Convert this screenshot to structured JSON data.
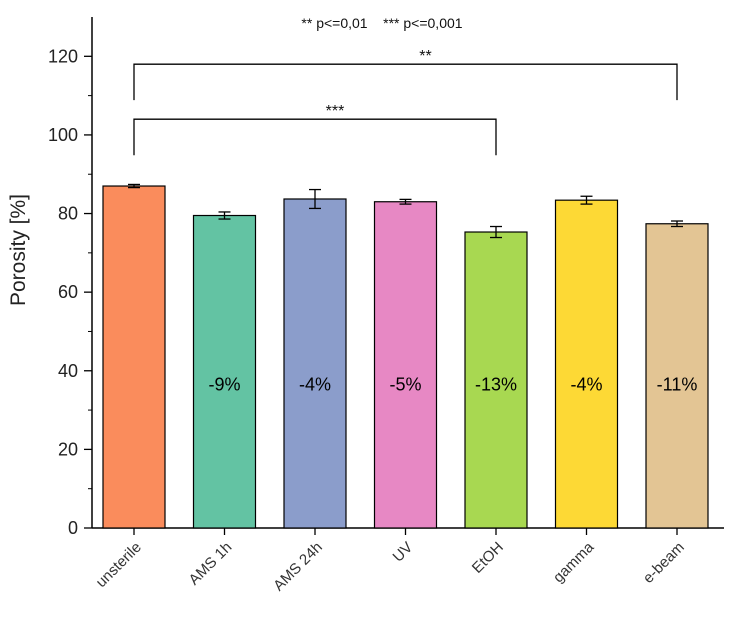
{
  "chart_data": {
    "type": "bar",
    "categories": [
      "unsterile",
      "AMS 1h",
      "AMS 24h",
      "UV",
      "EtOH",
      "gamma",
      "e-beam"
    ],
    "values": [
      87.0,
      79.5,
      83.7,
      83.0,
      75.3,
      83.4,
      77.4
    ],
    "errors": [
      0.4,
      0.9,
      2.4,
      0.6,
      1.4,
      1.0,
      0.7
    ],
    "colors": [
      "#fa8c5c",
      "#63c3a3",
      "#8b9dcb",
      "#e788c4",
      "#a8d851",
      "#fdd935",
      "#e3c594"
    ],
    "bar_labels": [
      "",
      "-9%",
      "-4%",
      "-5%",
      "-13%",
      "-4%",
      "-11%"
    ],
    "ylabel": "Porosity [%]",
    "xlabel": "",
    "ylim": [
      0,
      130
    ],
    "yticks": [
      0,
      20,
      40,
      60,
      80,
      100,
      120
    ],
    "grid": false,
    "significance_note": "** p<=0,01    *** p<=0,001",
    "brackets": [
      {
        "from": "unsterile",
        "to": "e-beam",
        "y": 118,
        "label": "**"
      },
      {
        "from": "unsterile",
        "to": "EtOH",
        "y": 104,
        "label": "***"
      }
    ]
  }
}
